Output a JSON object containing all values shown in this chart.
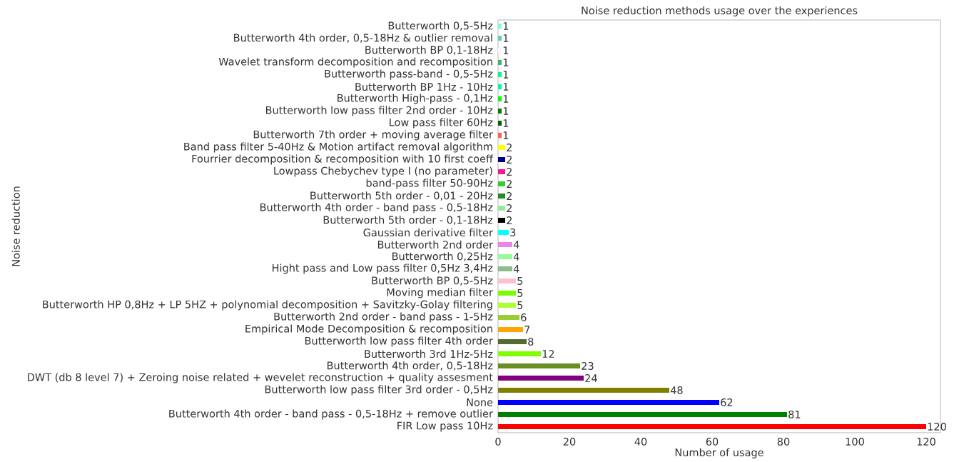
{
  "chart_data": {
    "type": "bar",
    "orientation": "horizontal",
    "title": "Noise reduction methods usage over the experiences",
    "xlabel": "Number of usage",
    "ylabel": "Noise reduction",
    "categories": [
      "Butterworth 0,5-5Hz",
      "Butterworth 4th order, 0,5-18Hz & outlier removal",
      "Butterworth BP 0,1-18Hz",
      "Wavelet transform decomposition and recomposition",
      "Butterworth pass-band - 0,5-5Hz",
      "Butterworth BP 1Hz - 10Hz",
      "Butterworth High-pass - 0,1Hz",
      "Butterworth low pass filter 2nd order - 10Hz",
      "Low pass filter 60Hz",
      "Butterworth 7th order + moving average filter",
      "Band pass filter 5-40Hz & Motion artifact removal algorithm",
      "Fourrier decomposition & recomposition with 10 first coeff",
      "Lowpass Chebychev type I (no parameter)",
      "band-pass filter 50-90Hz",
      "Butterworth 5th order - 0,01 - 20Hz",
      "Butterworth 4th order - band pass -  0,5-18Hz",
      "Butterworth 5th order - 0,1-18Hz",
      "Gaussian derivative filter",
      "Butterworth 2nd order",
      "Butterworth 0,25Hz",
      "Hight pass and Low pass filter 0,5Hz 3,4Hz",
      "Butterworth BP 0,5-5Hz",
      "Moving median filter",
      "Butterworth HP 0,8Hz + LP 5HZ + polynomial decomposition + Savitzky-Golay filtering",
      "Butterworth 2nd order - band pass - 1-5Hz",
      "Empirical Mode Decomposition & recomposition",
      "Butterworth low pass filter 4th order",
      "Butterworth 3rd 1Hz-5Hz",
      "Butterworth 4th order, 0,5-18Hz",
      "DWT (db 8 level 7) + Zeroing noise related + wevelet reconstruction + quality assesment",
      "Butterworth low pass filter 3rd order - 0,5Hz",
      "None",
      "Butterworth 4th order - band pass -  0,5-18Hz + remove outlier",
      "FIR Low pass 10Hz"
    ],
    "values": [
      1,
      1,
      1,
      1,
      1,
      1,
      1,
      1,
      1,
      1,
      2,
      2,
      2,
      2,
      2,
      2,
      2,
      3,
      4,
      4,
      4,
      5,
      5,
      5,
      6,
      7,
      8,
      12,
      23,
      24,
      48,
      62,
      81,
      120
    ],
    "colors": [
      "#7fffd4",
      "#66cdaa",
      "#fffafa",
      "#3cb371",
      "#00ff7f",
      "#00fa9a",
      "#00ff00",
      "#008000",
      "#006400",
      "#ff6347",
      "#ffff00",
      "#000080",
      "#ff1493",
      "#32cd32",
      "#228b22",
      "#90ee90",
      "#000000",
      "#00ffff",
      "#ee82ee",
      "#98fb98",
      "#8fbc8f",
      "#ffc0cb",
      "#7cfc00",
      "#adff2f",
      "#9acd32",
      "#ffa500",
      "#556b2f",
      "#7fff00",
      "#6b8e23",
      "#800080",
      "#808000",
      "#0000ff",
      "#008000",
      "#ff0000"
    ],
    "xlim": [
      0,
      124
    ],
    "xticks": [
      0,
      20,
      40,
      60,
      80,
      100,
      120
    ],
    "data_labels": true
  }
}
